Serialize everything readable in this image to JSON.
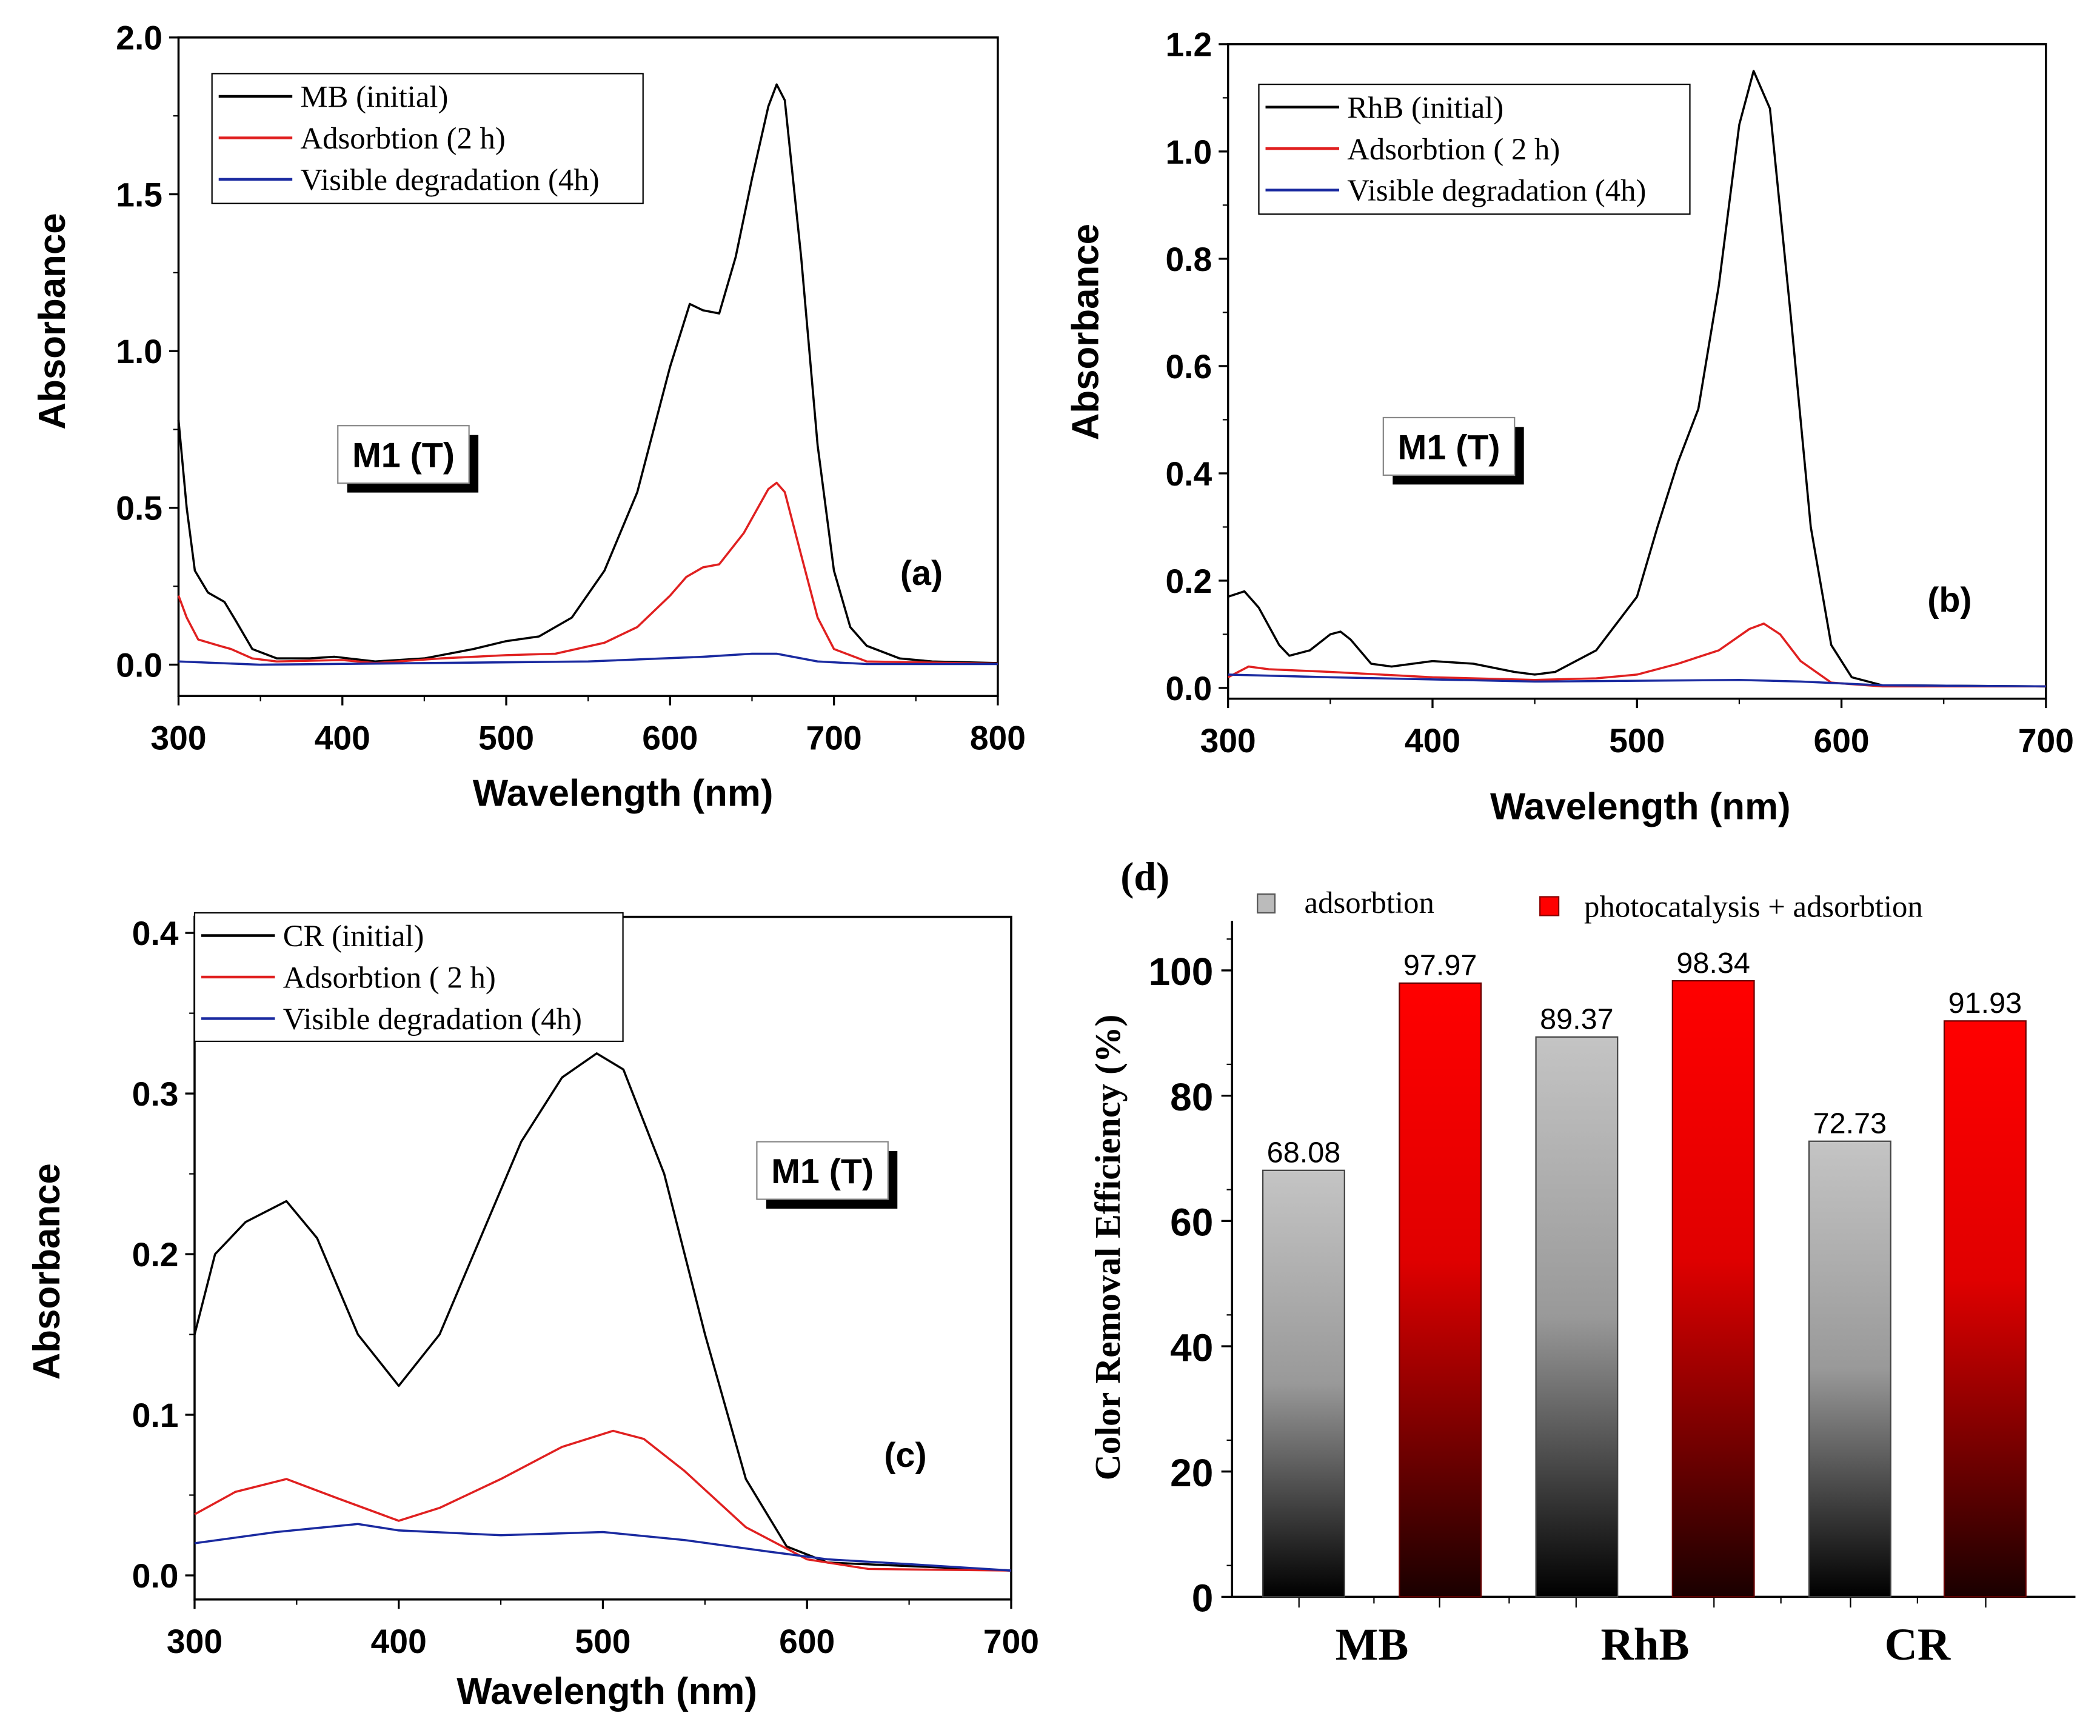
{
  "chart_data": [
    {
      "type": "line",
      "panel_label": "(a)",
      "annotation": "M1 (T)",
      "xlabel": "Wavelength (nm)",
      "ylabel": "Absorbance",
      "xlim": [
        300,
        800
      ],
      "ylim": [
        -0.1,
        2.0
      ],
      "xticks": [
        "300",
        "400",
        "500",
        "600",
        "700",
        "800"
      ],
      "yticks": [
        "0.0",
        "0.5",
        "1.0",
        "1.5",
        "2.0"
      ],
      "legend_position": "top-left",
      "series": [
        {
          "name": "MB (initial)",
          "color": "#000000",
          "points": [
            [
              300,
              0.78
            ],
            [
              305,
              0.5
            ],
            [
              310,
              0.3
            ],
            [
              318,
              0.23
            ],
            [
              328,
              0.2
            ],
            [
              335,
              0.14
            ],
            [
              345,
              0.05
            ],
            [
              360,
              0.02
            ],
            [
              380,
              0.02
            ],
            [
              395,
              0.025
            ],
            [
              420,
              0.01
            ],
            [
              450,
              0.02
            ],
            [
              480,
              0.05
            ],
            [
              500,
              0.075
            ],
            [
              520,
              0.09
            ],
            [
              540,
              0.15
            ],
            [
              560,
              0.3
            ],
            [
              580,
              0.55
            ],
            [
              600,
              0.95
            ],
            [
              612,
              1.15
            ],
            [
              620,
              1.13
            ],
            [
              630,
              1.12
            ],
            [
              640,
              1.3
            ],
            [
              650,
              1.55
            ],
            [
              660,
              1.78
            ],
            [
              665,
              1.85
            ],
            [
              670,
              1.8
            ],
            [
              680,
              1.3
            ],
            [
              690,
              0.7
            ],
            [
              700,
              0.3
            ],
            [
              710,
              0.12
            ],
            [
              720,
              0.06
            ],
            [
              740,
              0.02
            ],
            [
              760,
              0.01
            ],
            [
              800,
              0.005
            ]
          ]
        },
        {
          "name": "Adsorbtion (2 h)",
          "color": "#e02020",
          "points": [
            [
              300,
              0.22
            ],
            [
              305,
              0.15
            ],
            [
              312,
              0.08
            ],
            [
              325,
              0.06
            ],
            [
              332,
              0.05
            ],
            [
              345,
              0.02
            ],
            [
              360,
              0.01
            ],
            [
              400,
              0.015
            ],
            [
              420,
              0.005
            ],
            [
              460,
              0.02
            ],
            [
              500,
              0.03
            ],
            [
              530,
              0.035
            ],
            [
              560,
              0.07
            ],
            [
              580,
              0.12
            ],
            [
              600,
              0.22
            ],
            [
              610,
              0.28
            ],
            [
              620,
              0.31
            ],
            [
              630,
              0.32
            ],
            [
              645,
              0.42
            ],
            [
              660,
              0.56
            ],
            [
              665,
              0.58
            ],
            [
              670,
              0.55
            ],
            [
              680,
              0.35
            ],
            [
              690,
              0.15
            ],
            [
              700,
              0.05
            ],
            [
              720,
              0.01
            ],
            [
              800,
              0.003
            ]
          ]
        },
        {
          "name": "Visible degradation (4h)",
          "color": "#1a2aa0",
          "points": [
            [
              300,
              0.01
            ],
            [
              350,
              0.0
            ],
            [
              450,
              0.005
            ],
            [
              550,
              0.01
            ],
            [
              620,
              0.025
            ],
            [
              650,
              0.035
            ],
            [
              665,
              0.035
            ],
            [
              690,
              0.01
            ],
            [
              720,
              0.002
            ],
            [
              800,
              0.002
            ]
          ]
        }
      ]
    },
    {
      "type": "line",
      "panel_label": "(b)",
      "annotation": "M1 (T)",
      "xlabel": "Wavelength (nm)",
      "ylabel": "Absorbance",
      "xlim": [
        300,
        700
      ],
      "ylim": [
        -0.02,
        1.2
      ],
      "xticks": [
        "300",
        "400",
        "500",
        "600",
        "700"
      ],
      "yticks": [
        "0.0",
        "0.2",
        "0.4",
        "0.6",
        "0.8",
        "1.0",
        "1.2"
      ],
      "legend_position": "top-left",
      "series": [
        {
          "name": "RhB (initial)",
          "color": "#000000",
          "points": [
            [
              300,
              0.17
            ],
            [
              308,
              0.18
            ],
            [
              315,
              0.15
            ],
            [
              325,
              0.08
            ],
            [
              330,
              0.06
            ],
            [
              340,
              0.07
            ],
            [
              350,
              0.1
            ],
            [
              355,
              0.105
            ],
            [
              360,
              0.09
            ],
            [
              370,
              0.045
            ],
            [
              380,
              0.04
            ],
            [
              400,
              0.05
            ],
            [
              420,
              0.045
            ],
            [
              440,
              0.03
            ],
            [
              450,
              0.025
            ],
            [
              460,
              0.03
            ],
            [
              480,
              0.07
            ],
            [
              500,
              0.17
            ],
            [
              510,
              0.3
            ],
            [
              520,
              0.42
            ],
            [
              530,
              0.52
            ],
            [
              540,
              0.75
            ],
            [
              550,
              1.05
            ],
            [
              557,
              1.15
            ],
            [
              565,
              1.08
            ],
            [
              575,
              0.7
            ],
            [
              585,
              0.3
            ],
            [
              595,
              0.08
            ],
            [
              605,
              0.02
            ],
            [
              620,
              0.005
            ],
            [
              700,
              0.003
            ]
          ]
        },
        {
          "name": "Adsorbtion ( 2 h)",
          "color": "#e02020",
          "points": [
            [
              300,
              0.02
            ],
            [
              310,
              0.04
            ],
            [
              320,
              0.035
            ],
            [
              350,
              0.03
            ],
            [
              400,
              0.02
            ],
            [
              450,
              0.015
            ],
            [
              480,
              0.018
            ],
            [
              500,
              0.025
            ],
            [
              520,
              0.045
            ],
            [
              540,
              0.07
            ],
            [
              555,
              0.11
            ],
            [
              562,
              0.12
            ],
            [
              570,
              0.1
            ],
            [
              580,
              0.05
            ],
            [
              595,
              0.01
            ],
            [
              620,
              0.003
            ],
            [
              700,
              0.003
            ]
          ]
        },
        {
          "name": "Visible degradation (4h)",
          "color": "#1a2aa0",
          "points": [
            [
              300,
              0.025
            ],
            [
              350,
              0.02
            ],
            [
              450,
              0.012
            ],
            [
              550,
              0.015
            ],
            [
              580,
              0.012
            ],
            [
              620,
              0.005
            ],
            [
              700,
              0.003
            ]
          ]
        }
      ]
    },
    {
      "type": "line",
      "panel_label": "(c)",
      "annotation": "M1 (T)",
      "xlabel": "Wavelength (nm)",
      "ylabel": "Absorbance",
      "xlim": [
        300,
        700
      ],
      "ylim": [
        -0.015,
        0.41
      ],
      "xticks": [
        "300",
        "400",
        "500",
        "600",
        "700"
      ],
      "yticks": [
        "0.0",
        "0.1",
        "0.2",
        "0.3",
        "0.4"
      ],
      "legend_position": "top-left",
      "series": [
        {
          "name": "CR (initial)",
          "color": "#000000",
          "points": [
            [
              300,
              0.15
            ],
            [
              310,
              0.2
            ],
            [
              325,
              0.22
            ],
            [
              345,
              0.233
            ],
            [
              360,
              0.21
            ],
            [
              380,
              0.15
            ],
            [
              400,
              0.118
            ],
            [
              420,
              0.15
            ],
            [
              440,
              0.21
            ],
            [
              460,
              0.27
            ],
            [
              480,
              0.31
            ],
            [
              497,
              0.325
            ],
            [
              510,
              0.315
            ],
            [
              530,
              0.25
            ],
            [
              550,
              0.15
            ],
            [
              570,
              0.06
            ],
            [
              590,
              0.018
            ],
            [
              610,
              0.008
            ],
            [
              700,
              0.003
            ]
          ]
        },
        {
          "name": "Adsorbtion ( 2 h)",
          "color": "#e02020",
          "points": [
            [
              300,
              0.038
            ],
            [
              320,
              0.052
            ],
            [
              345,
              0.06
            ],
            [
              370,
              0.048
            ],
            [
              400,
              0.034
            ],
            [
              420,
              0.042
            ],
            [
              450,
              0.06
            ],
            [
              480,
              0.08
            ],
            [
              505,
              0.09
            ],
            [
              520,
              0.085
            ],
            [
              540,
              0.065
            ],
            [
              570,
              0.03
            ],
            [
              600,
              0.01
            ],
            [
              630,
              0.004
            ],
            [
              700,
              0.003
            ]
          ]
        },
        {
          "name": "Visible degradation (4h)",
          "color": "#1a2aa0",
          "points": [
            [
              300,
              0.02
            ],
            [
              340,
              0.027
            ],
            [
              380,
              0.032
            ],
            [
              400,
              0.028
            ],
            [
              450,
              0.025
            ],
            [
              500,
              0.027
            ],
            [
              540,
              0.022
            ],
            [
              580,
              0.015
            ],
            [
              610,
              0.01
            ],
            [
              650,
              0.007
            ],
            [
              700,
              0.003
            ]
          ]
        }
      ]
    },
    {
      "type": "bar",
      "panel_label": "(d)",
      "ylabel": "Color Removal Efficiency (%)",
      "categories": [
        "MB",
        "RhB",
        "CR"
      ],
      "ylim": [
        0,
        107
      ],
      "yticks": [
        "0",
        "20",
        "40",
        "60",
        "80",
        "100"
      ],
      "legend_position": "top",
      "series": [
        {
          "name": "adsorbtion",
          "color": "#c0c0c0",
          "values": [
            68.08,
            89.37,
            72.73
          ],
          "labels": [
            "68.08",
            "89.37",
            "72.73"
          ]
        },
        {
          "name": "photocatalysis + adsorbtion",
          "color": "#ff0000",
          "values": [
            97.97,
            98.34,
            91.93
          ],
          "labels": [
            "97.97",
            "98.34",
            "91.93"
          ]
        }
      ]
    }
  ]
}
